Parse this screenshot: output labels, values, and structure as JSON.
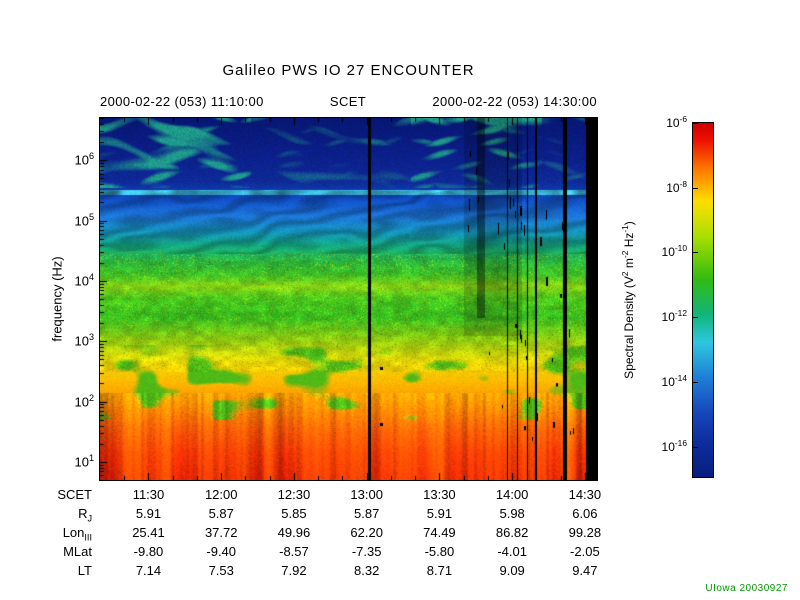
{
  "credit": "UIowa 20030927",
  "colors": {
    "background": "#ffffff",
    "axis_text": "#000000",
    "credit_green": "#009900"
  },
  "chart_data": {
    "type": "heatmap",
    "title": "Galileo PWS IO 27 ENCOUNTER",
    "x_axis": {
      "label": "SCET",
      "start": "2000-02-22 (053) 11:10:00",
      "end": "2000-02-22 (053) 14:30:00",
      "tick_times": [
        "11:30",
        "12:00",
        "12:30",
        "13:00",
        "13:30",
        "14:00",
        "14:30"
      ]
    },
    "y_axis": {
      "label": "frequency (Hz)",
      "scale": "log",
      "tick_base": "10",
      "tick_exponents": [
        6,
        5,
        4,
        3,
        2,
        1
      ]
    },
    "colorbar": {
      "label_parts": [
        {
          "t": "Spectral Density (V"
        },
        {
          "sup": "2"
        },
        {
          "t": " m"
        },
        {
          "sup": "-2"
        },
        {
          "t": " Hz"
        },
        {
          "sup": "-1"
        },
        {
          "t": ")"
        }
      ],
      "tick_base": "10",
      "tick_exponents": [
        -6,
        -8,
        -10,
        -12,
        -14,
        -16
      ],
      "gradient_stops": [
        {
          "pos": 0,
          "color": "#cc0000"
        },
        {
          "pos": 5,
          "color": "#ee1100"
        },
        {
          "pos": 13,
          "color": "#ff7700"
        },
        {
          "pos": 22,
          "color": "#ffdd00"
        },
        {
          "pos": 32,
          "color": "#aade00"
        },
        {
          "pos": 44,
          "color": "#33bb11"
        },
        {
          "pos": 54,
          "color": "#11b57a"
        },
        {
          "pos": 62,
          "color": "#2ec6e0"
        },
        {
          "pos": 72,
          "color": "#1f7fd6"
        },
        {
          "pos": 82,
          "color": "#1646bb"
        },
        {
          "pos": 91,
          "color": "#0d2b9a"
        },
        {
          "pos": 100,
          "color": "#071f7e"
        }
      ]
    },
    "ephemeris": {
      "rows": [
        {
          "label": "SCET",
          "sub": "",
          "values": [
            "11:30",
            "12:00",
            "12:30",
            "13:00",
            "13:30",
            "14:00",
            "14:30"
          ]
        },
        {
          "label": "R",
          "sub": "J",
          "values": [
            "5.91",
            "5.87",
            "5.85",
            "5.87",
            "5.91",
            "5.98",
            "6.06"
          ]
        },
        {
          "label": "Lon",
          "sub": "III",
          "values": [
            "25.41",
            "37.72",
            "49.96",
            "62.20",
            "74.49",
            "86.82",
            "99.28"
          ]
        },
        {
          "label": "MLat",
          "sub": "",
          "values": [
            "-9.80",
            "-9.40",
            "-8.57",
            "-7.35",
            "-5.80",
            "-4.01",
            "-2.05"
          ]
        },
        {
          "label": "LT",
          "sub": "",
          "values": [
            "7.14",
            "7.53",
            "7.92",
            "8.32",
            "8.71",
            "9.09",
            "9.47"
          ]
        }
      ]
    },
    "spectral_profile": [
      [
        6.7,
        [
          7,
          23,
          115
        ]
      ],
      [
        6.3,
        [
          10,
          28,
          130
        ]
      ],
      [
        5.95,
        [
          12,
          34,
          142
        ]
      ],
      [
        5.65,
        [
          14,
          42,
          152
        ]
      ],
      [
        5.53,
        [
          15,
          55,
          168
        ]
      ],
      [
        5.33,
        [
          17,
          80,
          196
        ]
      ],
      [
        5.08,
        [
          28,
          115,
          212
        ]
      ],
      [
        4.82,
        [
          20,
          145,
          185
        ]
      ],
      [
        4.58,
        [
          20,
          168,
          125
        ]
      ],
      [
        4.32,
        [
          40,
          182,
          62
        ]
      ],
      [
        4.1,
        [
          60,
          195,
          38
        ]
      ],
      [
        3.92,
        [
          135,
          212,
          22
        ]
      ],
      [
        3.72,
        [
          70,
          200,
          30
        ]
      ],
      [
        3.4,
        [
          52,
          190,
          32
        ]
      ],
      [
        3.05,
        [
          140,
          205,
          18
        ]
      ],
      [
        2.72,
        [
          225,
          218,
          8
        ]
      ],
      [
        2.35,
        [
          255,
          188,
          0
        ]
      ],
      [
        1.95,
        [
          255,
          138,
          0
        ]
      ],
      [
        1.55,
        [
          255,
          82,
          8
        ]
      ],
      [
        1.15,
        [
          255,
          45,
          5
        ]
      ],
      [
        0.7,
        [
          232,
          28,
          6
        ]
      ]
    ],
    "features": {
      "black_lines": [
        {
          "scet": "13:01",
          "width": 3
        },
        {
          "scet": "13:58",
          "width": 1
        },
        {
          "scet": "14:02",
          "width": 1
        },
        {
          "scet": "14:06",
          "width": 1
        },
        {
          "scet": "14:10",
          "width": 2
        },
        {
          "scet": "14:22",
          "width": 4
        }
      ],
      "blackout_start": "14:30",
      "disturbance_scet": [
        "13:40",
        "13:55"
      ],
      "markers": [
        {
          "scet": "13:06",
          "log10_hz": 2.56
        },
        {
          "scet": "13:06",
          "log10_hz": 1.63
        }
      ]
    }
  }
}
